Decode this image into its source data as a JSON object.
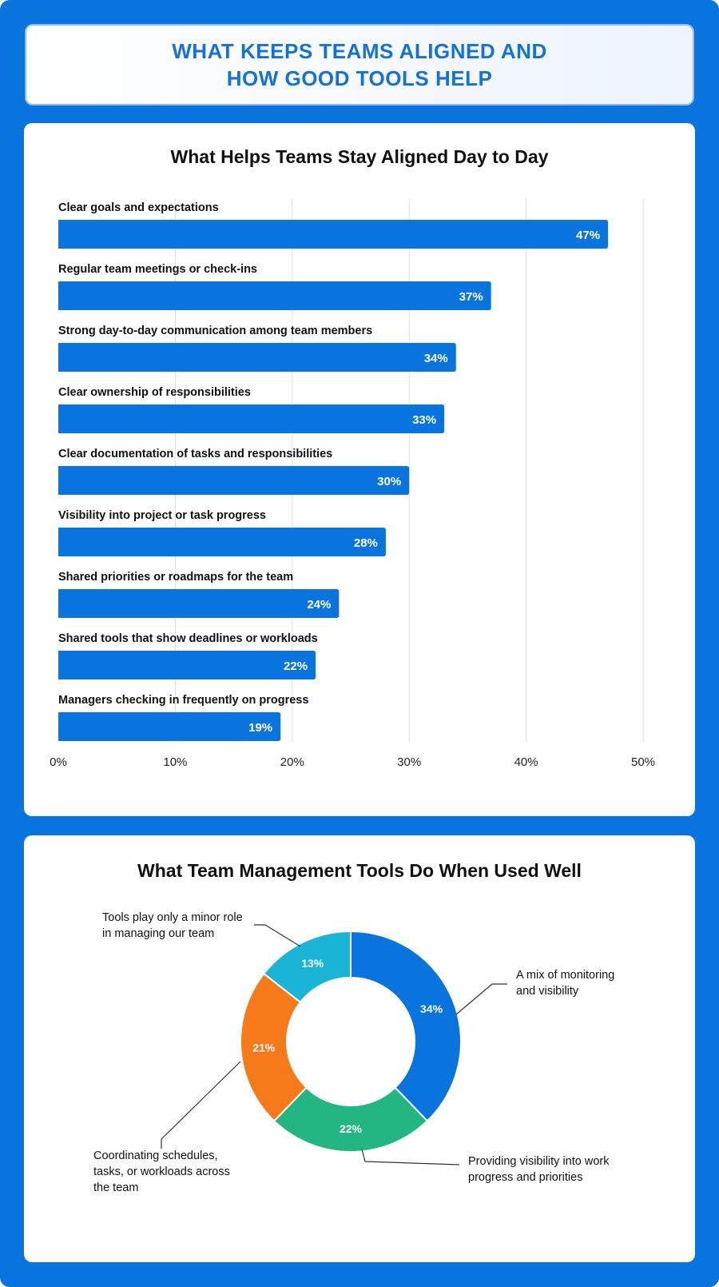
{
  "header": {
    "title": "WHAT KEEPS TEAMS ALIGNED AND HOW GOOD TOOLS HELP"
  },
  "colors": {
    "frame": "#0a74de",
    "bar": "#0a74de",
    "header_text": "#1471dc"
  },
  "chart_data": [
    {
      "type": "bar",
      "orientation": "horizontal",
      "title": "What Helps Teams Stay Aligned Day to Day",
      "categories": [
        "Clear goals and expectations",
        "Regular team meetings or check-ins",
        "Strong day-to-day communication among team members",
        "Clear ownership of responsibilities",
        "Clear documentation of tasks and responsibilities",
        "Visibility into project or task progress",
        "Shared priorities or roadmaps for the team",
        "Shared tools that show deadlines or workloads",
        "Managers checking in frequently on progress"
      ],
      "values": [
        47,
        37,
        34,
        33,
        30,
        28,
        24,
        22,
        19
      ],
      "value_labels": [
        "47%",
        "37%",
        "34%",
        "33%",
        "30%",
        "28%",
        "24%",
        "22%",
        "19%"
      ],
      "xlim": [
        0,
        50
      ],
      "xticks": [
        0,
        10,
        20,
        30,
        40,
        50
      ],
      "xtick_labels": [
        "0%",
        "10%",
        "20%",
        "30%",
        "40%",
        "50%"
      ],
      "grid": true,
      "color": "#0a74de"
    },
    {
      "type": "pie",
      "donut": true,
      "title": "What Team Management Tools Do When Used Well",
      "slices": [
        {
          "label": "A mix of monitoring and visibility",
          "value": 34,
          "value_label": "34%",
          "color": "#0a74de"
        },
        {
          "label": "Providing visibility into work progress and priorities",
          "value": 22,
          "value_label": "22%",
          "color": "#23b582"
        },
        {
          "label": "Coordinating schedules, tasks, or workloads across the team",
          "value": 21,
          "value_label": "21%",
          "color": "#f77a1a"
        },
        {
          "label": "Tools play only a minor role in managing our team",
          "value": 13,
          "value_label": "13%",
          "color": "#1ab4d6"
        }
      ]
    }
  ],
  "callouts": [
    [
      "A mix of monitoring",
      "and visibility"
    ],
    [
      "Providing visibility into work",
      "progress and priorities"
    ],
    [
      "Coordinating schedules,",
      "tasks, or workloads across",
      "the team"
    ],
    [
      "Tools play only a minor role",
      "in managing our team"
    ]
  ]
}
